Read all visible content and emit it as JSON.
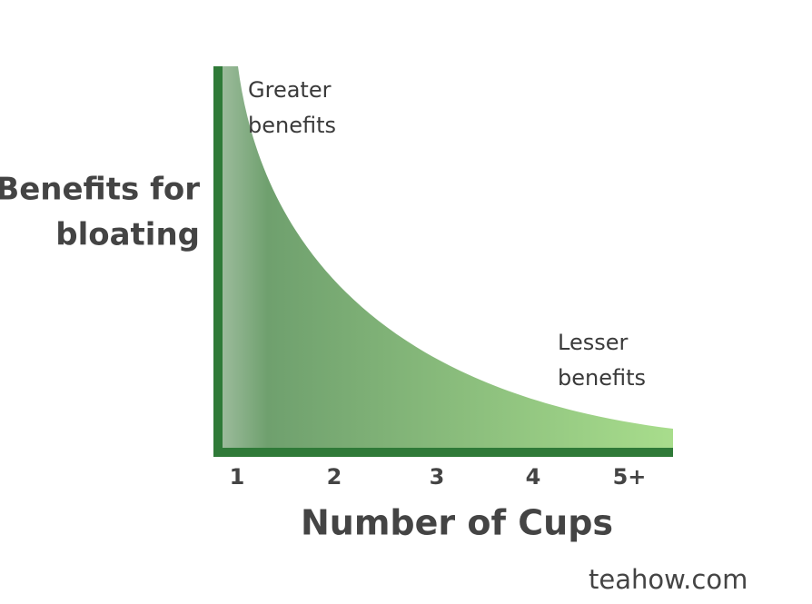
{
  "y_label": [
    "Benefits for",
    "bloating"
  ],
  "x_label": "Number of Cups",
  "x_ticks": [
    "1",
    "2",
    "3",
    "4",
    "5+"
  ],
  "annotations": [
    [
      "Greater",
      "benefits"
    ],
    [
      "Lesser",
      "benefits"
    ]
  ],
  "watermark": "teahow.com"
}
